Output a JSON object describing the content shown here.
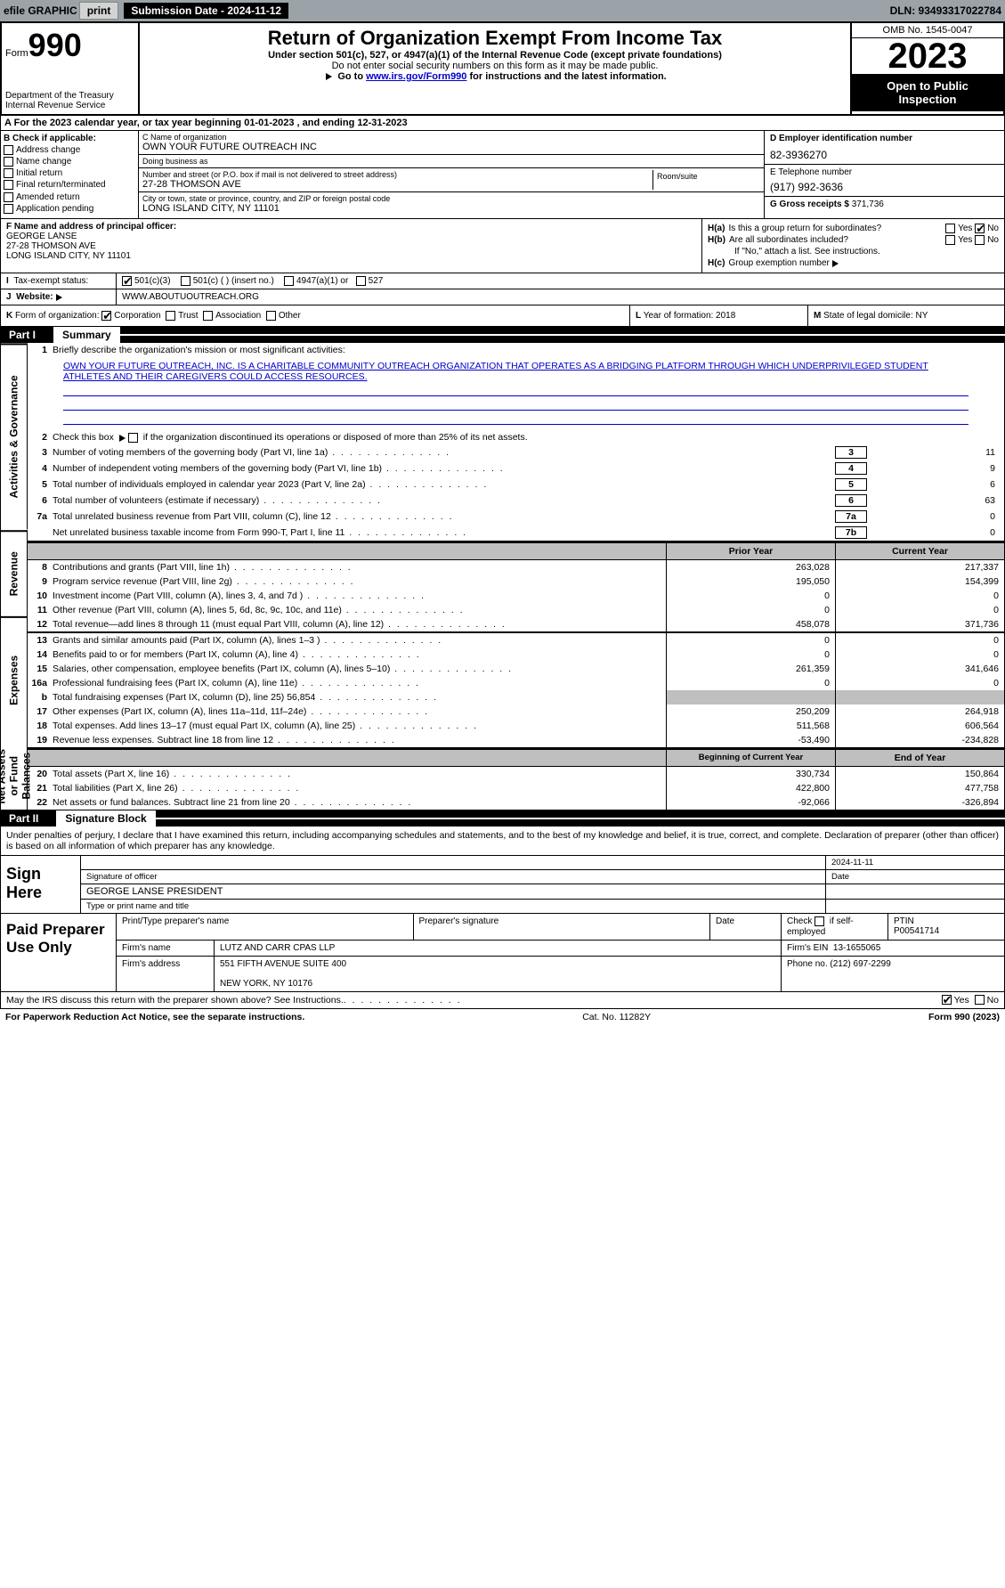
{
  "topbar": {
    "efile": "efile GRAPHIC",
    "print": "print",
    "subdate_label": "Submission Date - 2024-11-12",
    "dln": "DLN: 93493317022784"
  },
  "header": {
    "form_word": "Form",
    "form_num": "990",
    "dept": "Department of the Treasury\nInternal Revenue Service",
    "title": "Return of Organization Exempt From Income Tax",
    "sub": "Under section 501(c), 527, or 4947(a)(1) of the Internal Revenue Code (except private foundations)",
    "sub2": "Do not enter social security numbers on this form as it may be made public.",
    "goto_pre": "Go to ",
    "goto_link": "www.irs.gov/Form990",
    "goto_post": " for instructions and the latest information.",
    "omb": "OMB No. 1545-0047",
    "year": "2023",
    "open": "Open to Public Inspection"
  },
  "sectionA": "For the 2023 calendar year, or tax year beginning 01-01-2023    , and ending 12-31-2023",
  "colB": {
    "title": "B Check if applicable:",
    "items": [
      "Address change",
      "Name change",
      "Initial return",
      "Final return/terminated",
      "Amended return",
      "Application pending"
    ]
  },
  "colC": {
    "name_label": "C Name of organization",
    "name": "OWN YOUR FUTURE OUTREACH INC",
    "dba_label": "Doing business as",
    "dba": "",
    "street_label": "Number and street (or P.O. box if mail is not delivered to street address)",
    "street": "27-28 THOMSON AVE",
    "room_label": "Room/suite",
    "city_label": "City or town, state or province, country, and ZIP or foreign postal code",
    "city": "LONG ISLAND CITY, NY  11101"
  },
  "colD": {
    "ein_label": "D Employer identification number",
    "ein": "82-3936270",
    "tel_label": "E Telephone number",
    "tel": "(917) 992-3636",
    "gross_label": "G Gross receipts $",
    "gross": "371,736"
  },
  "colF": {
    "label": "F  Name and address of principal officer:",
    "name": "GEORGE LANSE",
    "street": "27-28 THOMSON AVE",
    "city": "LONG ISLAND CITY, NY  11101"
  },
  "colH": {
    "ha": "Is this a group return for subordinates?",
    "hb": "Are all subordinates included?",
    "hb_note": "If \"No,\" attach a list. See instructions.",
    "hc": "Group exemption number"
  },
  "rowI": {
    "label": "Tax-exempt status:",
    "opts": [
      "501(c)(3)",
      "501(c) (  ) (insert no.)",
      "4947(a)(1) or",
      "527"
    ]
  },
  "rowJ": {
    "label": "Website:",
    "val": "WWW.ABOUTUOUTREACH.ORG"
  },
  "rowK": {
    "k": "Form of organization:",
    "k_opts": [
      "Corporation",
      "Trust",
      "Association",
      "Other"
    ],
    "l": "Year of formation: 2018",
    "m": "State of legal domicile: NY"
  },
  "part1": {
    "num": "Part I",
    "title": "Summary",
    "sections": {
      "gov": {
        "label": "Activities & Governance",
        "line1_intro": "Briefly describe the organization's mission or most significant activities:",
        "line1_text": "OWN YOUR FUTURE OUTREACH, INC. IS A CHARITABLE COMMUNITY OUTREACH ORGANIZATION THAT OPERATES AS A BRIDGING PLATFORM THROUGH WHICH UNDERPRIVILEGED STUDENT ATHLETES AND THEIR CAREGIVERS COULD ACCESS RESOURCES.",
        "line2": "Check this box      if the organization discontinued its operations or disposed of more than 25% of its net assets.",
        "lines": [
          {
            "n": "3",
            "d": "Number of voting members of the governing body (Part VI, line 1a)",
            "box": "3",
            "v": "11"
          },
          {
            "n": "4",
            "d": "Number of independent voting members of the governing body (Part VI, line 1b)",
            "box": "4",
            "v": "9"
          },
          {
            "n": "5",
            "d": "Total number of individuals employed in calendar year 2023 (Part V, line 2a)",
            "box": "5",
            "v": "6"
          },
          {
            "n": "6",
            "d": "Total number of volunteers (estimate if necessary)",
            "box": "6",
            "v": "63"
          },
          {
            "n": "7a",
            "d": "Total unrelated business revenue from Part VIII, column (C), line 12",
            "box": "7a",
            "v": "0"
          },
          {
            "n": "",
            "d": "Net unrelated business taxable income from Form 990-T, Part I, line 11",
            "box": "7b",
            "v": "0"
          }
        ]
      },
      "rev": {
        "label": "Revenue",
        "hdr1": "Prior Year",
        "hdr2": "Current Year",
        "lines": [
          {
            "n": "8",
            "d": "Contributions and grants (Part VIII, line 1h)",
            "c1": "263,028",
            "c2": "217,337"
          },
          {
            "n": "9",
            "d": "Program service revenue (Part VIII, line 2g)",
            "c1": "195,050",
            "c2": "154,399"
          },
          {
            "n": "10",
            "d": "Investment income (Part VIII, column (A), lines 3, 4, and 7d )",
            "c1": "0",
            "c2": "0"
          },
          {
            "n": "11",
            "d": "Other revenue (Part VIII, column (A), lines 5, 6d, 8c, 9c, 10c, and 11e)",
            "c1": "0",
            "c2": "0"
          },
          {
            "n": "12",
            "d": "Total revenue—add lines 8 through 11 (must equal Part VIII, column (A), line 12)",
            "c1": "458,078",
            "c2": "371,736"
          }
        ]
      },
      "exp": {
        "label": "Expenses",
        "lines": [
          {
            "n": "13",
            "d": "Grants and similar amounts paid (Part IX, column (A), lines 1–3 )",
            "c1": "0",
            "c2": "0"
          },
          {
            "n": "14",
            "d": "Benefits paid to or for members (Part IX, column (A), line 4)",
            "c1": "0",
            "c2": "0"
          },
          {
            "n": "15",
            "d": "Salaries, other compensation, employee benefits (Part IX, column (A), lines 5–10)",
            "c1": "261,359",
            "c2": "341,646"
          },
          {
            "n": "16a",
            "d": "Professional fundraising fees (Part IX, column (A), line 11e)",
            "c1": "0",
            "c2": "0"
          },
          {
            "n": "b",
            "d": "Total fundraising expenses (Part IX, column (D), line 25) 56,854",
            "c1": "",
            "c2": "",
            "shaded": true
          },
          {
            "n": "17",
            "d": "Other expenses (Part IX, column (A), lines 11a–11d, 11f–24e)",
            "c1": "250,209",
            "c2": "264,918"
          },
          {
            "n": "18",
            "d": "Total expenses. Add lines 13–17 (must equal Part IX, column (A), line 25)",
            "c1": "511,568",
            "c2": "606,564"
          },
          {
            "n": "19",
            "d": "Revenue less expenses. Subtract line 18 from line 12",
            "c1": "-53,490",
            "c2": "-234,828"
          }
        ]
      },
      "net": {
        "label": "Net Assets or Fund Balances",
        "hdr1": "Beginning of Current Year",
        "hdr2": "End of Year",
        "lines": [
          {
            "n": "20",
            "d": "Total assets (Part X, line 16)",
            "c1": "330,734",
            "c2": "150,864"
          },
          {
            "n": "21",
            "d": "Total liabilities (Part X, line 26)",
            "c1": "422,800",
            "c2": "477,758"
          },
          {
            "n": "22",
            "d": "Net assets or fund balances. Subtract line 21 from line 20",
            "c1": "-92,066",
            "c2": "-326,894"
          }
        ]
      }
    }
  },
  "part2": {
    "num": "Part II",
    "title": "Signature Block",
    "text": "Under penalties of perjury, I declare that I have examined this return, including accompanying schedules and statements, and to the best of my knowledge and belief, it is true, correct, and complete. Declaration of preparer (other than officer) is based on all information of which preparer has any knowledge."
  },
  "sign": {
    "left": "Sign Here",
    "date": "2024-11-11",
    "sig_label": "Signature of officer",
    "name": "GEORGE LANSE  PRESIDENT",
    "name_label": "Type or print name and title",
    "date_label": "Date"
  },
  "paid": {
    "left": "Paid Preparer Use Only",
    "h1": "Print/Type preparer's name",
    "h2": "Preparer's signature",
    "h3": "Date",
    "h4": "Check       if self-employed",
    "h5_label": "PTIN",
    "h5": "P00541714",
    "firm_label": "Firm's name",
    "firm": "LUTZ AND CARR CPAS LLP",
    "ein_label": "Firm's EIN",
    "ein": "13-1655065",
    "addr_label": "Firm's address",
    "addr1": "551 FIFTH AVENUE SUITE 400",
    "addr2": "NEW YORK, NY  10176",
    "phone_label": "Phone no.",
    "phone": "(212) 697-2299"
  },
  "footer": {
    "discuss": "May the IRS discuss this return with the preparer shown above? See Instructions.",
    "paperwork": "For Paperwork Reduction Act Notice, see the separate instructions.",
    "cat": "Cat. No. 11282Y",
    "form": "Form 990 (2023)"
  }
}
